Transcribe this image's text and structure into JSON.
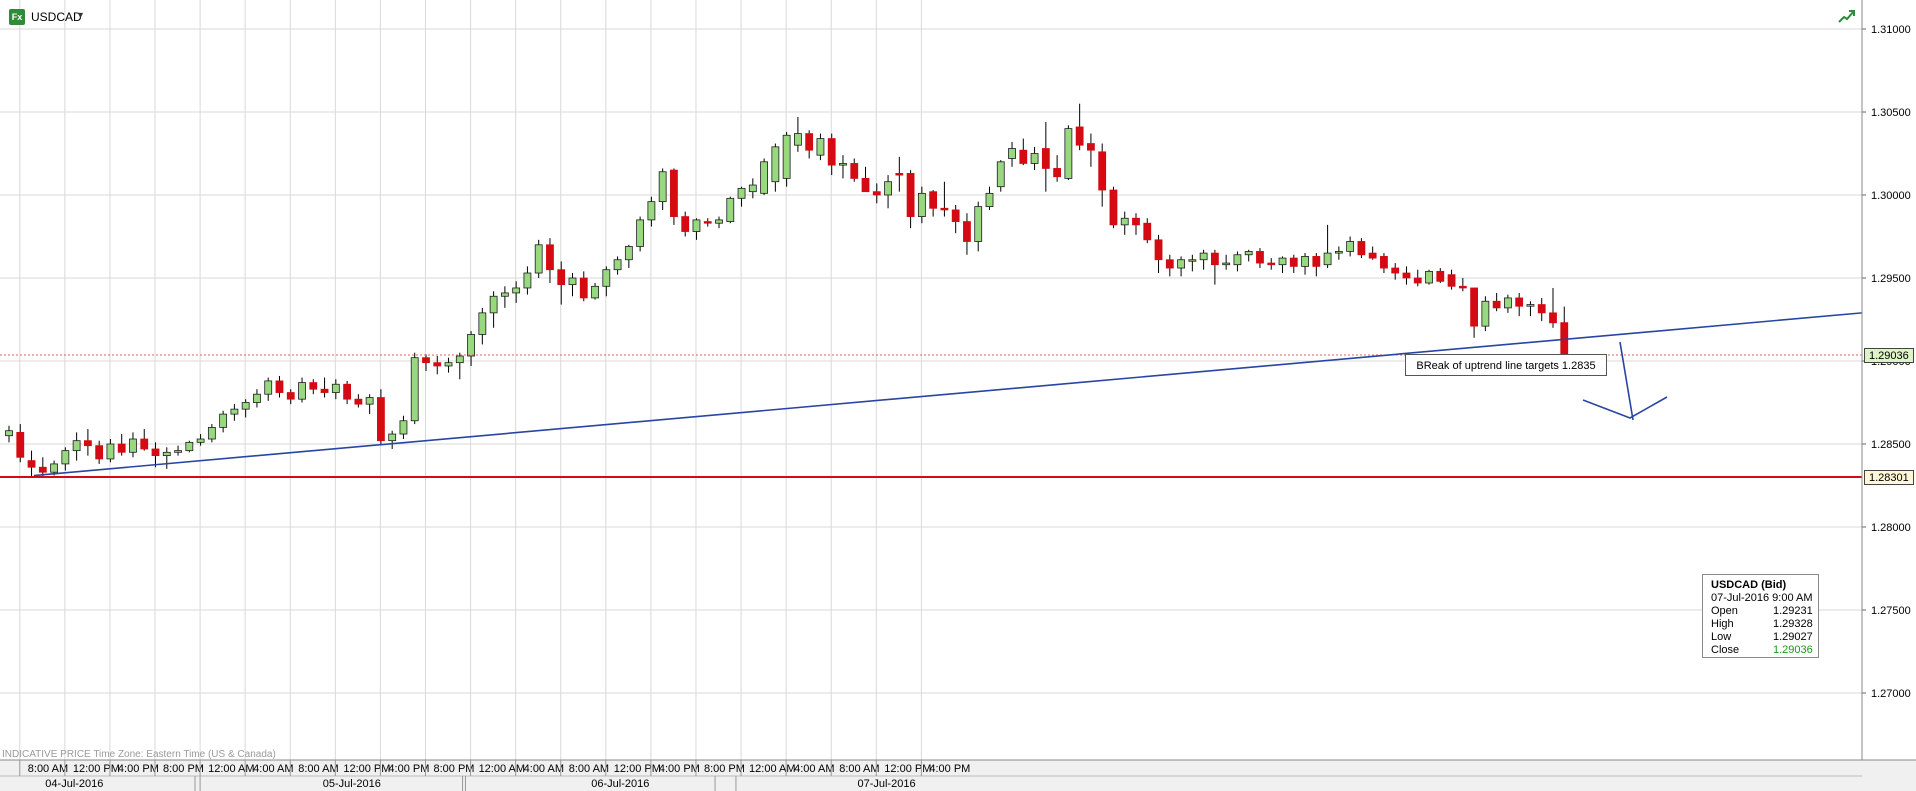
{
  "header": {
    "badge": "Fx",
    "symbol": "USDCAD",
    "caret": "▼",
    "trend_icon": "trend-up-icon"
  },
  "footer_note": "INDICATIVE PRICE   Time Zone: Eastern Time (US & Canada)",
  "annotation": "BReak of uptrend line targets 1.2835",
  "price_tags": {
    "last": "1.29036",
    "line": "1.28301"
  },
  "colors": {
    "up": "#98d980",
    "down": "#d40b12",
    "trendline": "#2945a3",
    "support": "#d40b12",
    "grid": "#d9d9d9"
  },
  "ohlc": {
    "title": "USDCAD (Bid)",
    "datetime": "07-Jul-2016 9:00 AM",
    "rows": [
      {
        "label": "Open",
        "value": "1.29231"
      },
      {
        "label": "High",
        "value": "1.29328"
      },
      {
        "label": "Low",
        "value": "1.29027"
      },
      {
        "label": "Close",
        "value": "1.29036"
      }
    ]
  },
  "chart_data": {
    "type": "candlestick",
    "interval_hours": 1,
    "y_ticks": [
      "1.31000",
      "1.30500",
      "1.30000",
      "1.29500",
      "1.29000",
      "1.28500",
      "1.28000",
      "1.27500",
      "1.27000"
    ],
    "y_range": [
      1.2655,
      1.3115
    ],
    "x_time_labels": [
      "8:00 AM",
      "12:00 PM",
      "4:00 PM",
      "8:00 PM",
      "12:00 AM",
      "4:00 AM",
      "8:00 AM",
      "12:00 PM",
      "4:00 PM",
      "8:00 PM",
      "12:00 AM",
      "4:00 AM",
      "8:00 AM",
      "12:00 PM",
      "4:00 PM",
      "8:00 PM",
      "12:00 AM",
      "4:00 AM",
      "8:00 AM",
      "12:00 PM",
      "4:00 PM"
    ],
    "x_date_labels": [
      "04-Jul-2016",
      "05-Jul-2016",
      "06-Jul-2016",
      "07-Jul-2016"
    ],
    "support_level": 1.28301,
    "last_price": 1.29036,
    "uptrend_line": {
      "start": {
        "x": "04-Jul-2016 7:00 AM",
        "y": 1.2831
      },
      "end": {
        "x": "07-Jul-2016 4:00 PM",
        "y": 1.2929
      }
    },
    "candles": [
      {
        "o": 1.2855,
        "h": 1.2861,
        "l": 1.2851,
        "c": 1.2858
      },
      {
        "o": 1.2857,
        "h": 1.2862,
        "l": 1.2839,
        "c": 1.2842
      },
      {
        "o": 1.284,
        "h": 1.2846,
        "l": 1.283,
        "c": 1.2836
      },
      {
        "o": 1.2836,
        "h": 1.2842,
        "l": 1.283,
        "c": 1.2833
      },
      {
        "o": 1.2833,
        "h": 1.284,
        "l": 1.2831,
        "c": 1.2838
      },
      {
        "o": 1.2838,
        "h": 1.2848,
        "l": 1.2834,
        "c": 1.2846
      },
      {
        "o": 1.2846,
        "h": 1.2857,
        "l": 1.284,
        "c": 1.2852
      },
      {
        "o": 1.2852,
        "h": 1.2859,
        "l": 1.2843,
        "c": 1.2849
      },
      {
        "o": 1.2849,
        "h": 1.2852,
        "l": 1.2838,
        "c": 1.2841
      },
      {
        "o": 1.2841,
        "h": 1.2853,
        "l": 1.2839,
        "c": 1.285
      },
      {
        "o": 1.285,
        "h": 1.2856,
        "l": 1.2843,
        "c": 1.2845
      },
      {
        "o": 1.2845,
        "h": 1.2857,
        "l": 1.2842,
        "c": 1.2853
      },
      {
        "o": 1.2853,
        "h": 1.2859,
        "l": 1.2846,
        "c": 1.2847
      },
      {
        "o": 1.2847,
        "h": 1.2851,
        "l": 1.2836,
        "c": 1.2843
      },
      {
        "o": 1.2843,
        "h": 1.2848,
        "l": 1.2835,
        "c": 1.2845
      },
      {
        "o": 1.2845,
        "h": 1.2849,
        "l": 1.2843,
        "c": 1.2846
      },
      {
        "o": 1.2846,
        "h": 1.2852,
        "l": 1.2845,
        "c": 1.2851
      },
      {
        "o": 1.2851,
        "h": 1.2856,
        "l": 1.2849,
        "c": 1.2853
      },
      {
        "o": 1.2853,
        "h": 1.2862,
        "l": 1.2851,
        "c": 1.286
      },
      {
        "o": 1.286,
        "h": 1.287,
        "l": 1.2857,
        "c": 1.2868
      },
      {
        "o": 1.2868,
        "h": 1.2874,
        "l": 1.2864,
        "c": 1.2871
      },
      {
        "o": 1.2871,
        "h": 1.2877,
        "l": 1.2866,
        "c": 1.2875
      },
      {
        "o": 1.2875,
        "h": 1.2883,
        "l": 1.2872,
        "c": 1.288
      },
      {
        "o": 1.288,
        "h": 1.289,
        "l": 1.2876,
        "c": 1.2888
      },
      {
        "o": 1.2888,
        "h": 1.2891,
        "l": 1.2878,
        "c": 1.2881
      },
      {
        "o": 1.2881,
        "h": 1.2883,
        "l": 1.2874,
        "c": 1.2877
      },
      {
        "o": 1.2877,
        "h": 1.289,
        "l": 1.2875,
        "c": 1.2887
      },
      {
        "o": 1.2887,
        "h": 1.2889,
        "l": 1.288,
        "c": 1.2883
      },
      {
        "o": 1.2883,
        "h": 1.289,
        "l": 1.2878,
        "c": 1.2881
      },
      {
        "o": 1.2881,
        "h": 1.2889,
        "l": 1.2877,
        "c": 1.2886
      },
      {
        "o": 1.2886,
        "h": 1.2888,
        "l": 1.2874,
        "c": 1.2877
      },
      {
        "o": 1.2877,
        "h": 1.288,
        "l": 1.2872,
        "c": 1.2874
      },
      {
        "o": 1.2874,
        "h": 1.288,
        "l": 1.2868,
        "c": 1.2878
      },
      {
        "o": 1.2878,
        "h": 1.2883,
        "l": 1.285,
        "c": 1.2852
      },
      {
        "o": 1.2852,
        "h": 1.2858,
        "l": 1.2847,
        "c": 1.2856
      },
      {
        "o": 1.2856,
        "h": 1.2867,
        "l": 1.2853,
        "c": 1.2864
      },
      {
        "o": 1.2864,
        "h": 1.2905,
        "l": 1.2862,
        "c": 1.2902
      },
      {
        "o": 1.2902,
        "h": 1.2904,
        "l": 1.2894,
        "c": 1.2899
      },
      {
        "o": 1.2899,
        "h": 1.2903,
        "l": 1.2892,
        "c": 1.2897
      },
      {
        "o": 1.2897,
        "h": 1.2902,
        "l": 1.2893,
        "c": 1.2899
      },
      {
        "o": 1.2899,
        "h": 1.2905,
        "l": 1.2889,
        "c": 1.2903
      },
      {
        "o": 1.2903,
        "h": 1.2918,
        "l": 1.2897,
        "c": 1.2916
      },
      {
        "o": 1.2916,
        "h": 1.2932,
        "l": 1.291,
        "c": 1.2929
      },
      {
        "o": 1.2929,
        "h": 1.2942,
        "l": 1.292,
        "c": 1.2939
      },
      {
        "o": 1.2939,
        "h": 1.2945,
        "l": 1.2932,
        "c": 1.2941
      },
      {
        "o": 1.2941,
        "h": 1.2948,
        "l": 1.2935,
        "c": 1.2944
      },
      {
        "o": 1.2944,
        "h": 1.2957,
        "l": 1.294,
        "c": 1.2953
      },
      {
        "o": 1.2953,
        "h": 1.2973,
        "l": 1.295,
        "c": 1.297
      },
      {
        "o": 1.297,
        "h": 1.2974,
        "l": 1.2947,
        "c": 1.2955
      },
      {
        "o": 1.2955,
        "h": 1.296,
        "l": 1.2934,
        "c": 1.2946
      },
      {
        "o": 1.2946,
        "h": 1.2953,
        "l": 1.2939,
        "c": 1.295
      },
      {
        "o": 1.295,
        "h": 1.2954,
        "l": 1.2936,
        "c": 1.2938
      },
      {
        "o": 1.2938,
        "h": 1.2947,
        "l": 1.2937,
        "c": 1.2945
      },
      {
        "o": 1.2945,
        "h": 1.2957,
        "l": 1.2939,
        "c": 1.2955
      },
      {
        "o": 1.2955,
        "h": 1.2963,
        "l": 1.2952,
        "c": 1.2961
      },
      {
        "o": 1.2961,
        "h": 1.297,
        "l": 1.2956,
        "c": 1.2969
      },
      {
        "o": 1.2969,
        "h": 1.2987,
        "l": 1.2966,
        "c": 1.2985
      },
      {
        "o": 1.2985,
        "h": 1.2999,
        "l": 1.2981,
        "c": 1.2996
      },
      {
        "o": 1.2996,
        "h": 1.3016,
        "l": 1.2991,
        "c": 1.3014
      },
      {
        "o": 1.3015,
        "h": 1.3016,
        "l": 1.2982,
        "c": 1.2987
      },
      {
        "o": 1.2987,
        "h": 1.299,
        "l": 1.2975,
        "c": 1.2978
      },
      {
        "o": 1.2978,
        "h": 1.2986,
        "l": 1.2973,
        "c": 1.2985
      },
      {
        "o": 1.2984,
        "h": 1.2986,
        "l": 1.2981,
        "c": 1.2983
      },
      {
        "o": 1.2983,
        "h": 1.2987,
        "l": 1.298,
        "c": 1.2985
      },
      {
        "o": 1.2984,
        "h": 1.2999,
        "l": 1.2983,
        "c": 1.2998
      },
      {
        "o": 1.2998,
        "h": 1.3005,
        "l": 1.2993,
        "c": 1.3004
      },
      {
        "o": 1.3002,
        "h": 1.301,
        "l": 1.2998,
        "c": 1.3006
      },
      {
        "o": 1.3001,
        "h": 1.3022,
        "l": 1.3,
        "c": 1.302
      },
      {
        "o": 1.3008,
        "h": 1.3031,
        "l": 1.3002,
        "c": 1.3029
      },
      {
        "o": 1.301,
        "h": 1.3038,
        "l": 1.3005,
        "c": 1.3036
      },
      {
        "o": 1.303,
        "h": 1.3047,
        "l": 1.3026,
        "c": 1.3037
      },
      {
        "o": 1.3037,
        "h": 1.3039,
        "l": 1.3022,
        "c": 1.3027
      },
      {
        "o": 1.3024,
        "h": 1.3037,
        "l": 1.3021,
        "c": 1.3034
      },
      {
        "o": 1.3034,
        "h": 1.3037,
        "l": 1.3012,
        "c": 1.3018
      },
      {
        "o": 1.3018,
        "h": 1.3024,
        "l": 1.301,
        "c": 1.3019
      },
      {
        "o": 1.3019,
        "h": 1.3022,
        "l": 1.3008,
        "c": 1.301
      },
      {
        "o": 1.301,
        "h": 1.3017,
        "l": 1.3003,
        "c": 1.3002
      },
      {
        "o": 1.3002,
        "h": 1.3007,
        "l": 1.2995,
        "c": 1.3
      },
      {
        "o": 1.3,
        "h": 1.3012,
        "l": 1.2992,
        "c": 1.3008
      },
      {
        "o": 1.3013,
        "h": 1.3023,
        "l": 1.3002,
        "c": 1.3012
      },
      {
        "o": 1.3013,
        "h": 1.3015,
        "l": 1.298,
        "c": 1.2987
      },
      {
        "o": 1.2987,
        "h": 1.3005,
        "l": 1.2983,
        "c": 1.3001
      },
      {
        "o": 1.3002,
        "h": 1.3003,
        "l": 1.2987,
        "c": 1.2992
      },
      {
        "o": 1.2992,
        "h": 1.3008,
        "l": 1.2987,
        "c": 1.2991
      },
      {
        "o": 1.2991,
        "h": 1.2994,
        "l": 1.2977,
        "c": 1.2984
      },
      {
        "o": 1.2984,
        "h": 1.2989,
        "l": 1.2964,
        "c": 1.2972
      },
      {
        "o": 1.2972,
        "h": 1.2996,
        "l": 1.2966,
        "c": 1.2993
      },
      {
        "o": 1.2993,
        "h": 1.3005,
        "l": 1.2991,
        "c": 1.3001
      },
      {
        "o": 1.3005,
        "h": 1.3021,
        "l": 1.3002,
        "c": 1.302
      },
      {
        "o": 1.3022,
        "h": 1.3032,
        "l": 1.3017,
        "c": 1.3028
      },
      {
        "o": 1.3027,
        "h": 1.3034,
        "l": 1.3018,
        "c": 1.3019
      },
      {
        "o": 1.3019,
        "h": 1.3029,
        "l": 1.3015,
        "c": 1.3025
      },
      {
        "o": 1.3028,
        "h": 1.3044,
        "l": 1.3002,
        "c": 1.3016
      },
      {
        "o": 1.3016,
        "h": 1.3024,
        "l": 1.3008,
        "c": 1.3011
      },
      {
        "o": 1.301,
        "h": 1.3042,
        "l": 1.3009,
        "c": 1.304
      },
      {
        "o": 1.3041,
        "h": 1.3055,
        "l": 1.3027,
        "c": 1.303
      },
      {
        "o": 1.3031,
        "h": 1.3037,
        "l": 1.3017,
        "c": 1.3027
      },
      {
        "o": 1.3026,
        "h": 1.3031,
        "l": 1.2993,
        "c": 1.3003
      },
      {
        "o": 1.3003,
        "h": 1.3005,
        "l": 1.298,
        "c": 1.2982
      },
      {
        "o": 1.2982,
        "h": 1.299,
        "l": 1.2976,
        "c": 1.2986
      },
      {
        "o": 1.2986,
        "h": 1.2989,
        "l": 1.2976,
        "c": 1.2982
      },
      {
        "o": 1.2983,
        "h": 1.2986,
        "l": 1.2971,
        "c": 1.2973
      },
      {
        "o": 1.2973,
        "h": 1.2976,
        "l": 1.2953,
        "c": 1.2961
      },
      {
        "o": 1.2961,
        "h": 1.2964,
        "l": 1.2951,
        "c": 1.2956
      },
      {
        "o": 1.2956,
        "h": 1.2963,
        "l": 1.2951,
        "c": 1.2961
      },
      {
        "o": 1.2961,
        "h": 1.2964,
        "l": 1.2954,
        "c": 1.2961
      },
      {
        "o": 1.2961,
        "h": 1.2967,
        "l": 1.2955,
        "c": 1.2965
      },
      {
        "o": 1.2965,
        "h": 1.2967,
        "l": 1.2946,
        "c": 1.2958
      },
      {
        "o": 1.2958,
        "h": 1.2964,
        "l": 1.2955,
        "c": 1.2959
      },
      {
        "o": 1.2958,
        "h": 1.2966,
        "l": 1.2954,
        "c": 1.2964
      },
      {
        "o": 1.2964,
        "h": 1.2967,
        "l": 1.296,
        "c": 1.2966
      },
      {
        "o": 1.2966,
        "h": 1.2968,
        "l": 1.2956,
        "c": 1.2959
      },
      {
        "o": 1.2959,
        "h": 1.2962,
        "l": 1.2955,
        "c": 1.2958
      },
      {
        "o": 1.2958,
        "h": 1.2963,
        "l": 1.2953,
        "c": 1.2962
      },
      {
        "o": 1.2962,
        "h": 1.2964,
        "l": 1.2953,
        "c": 1.2957
      },
      {
        "o": 1.2957,
        "h": 1.2965,
        "l": 1.2952,
        "c": 1.2963
      },
      {
        "o": 1.2963,
        "h": 1.2965,
        "l": 1.2951,
        "c": 1.2957
      },
      {
        "o": 1.2958,
        "h": 1.2982,
        "l": 1.2956,
        "c": 1.2965
      },
      {
        "o": 1.2965,
        "h": 1.2969,
        "l": 1.2961,
        "c": 1.2966
      },
      {
        "o": 1.2966,
        "h": 1.2975,
        "l": 1.2963,
        "c": 1.2972
      },
      {
        "o": 1.2972,
        "h": 1.2974,
        "l": 1.2962,
        "c": 1.2964
      },
      {
        "o": 1.2965,
        "h": 1.2969,
        "l": 1.2961,
        "c": 1.2962
      },
      {
        "o": 1.2963,
        "h": 1.2965,
        "l": 1.2953,
        "c": 1.2956
      },
      {
        "o": 1.2956,
        "h": 1.2959,
        "l": 1.2949,
        "c": 1.2953
      },
      {
        "o": 1.2953,
        "h": 1.2957,
        "l": 1.2946,
        "c": 1.295
      },
      {
        "o": 1.295,
        "h": 1.2955,
        "l": 1.2945,
        "c": 1.2947
      },
      {
        "o": 1.2947,
        "h": 1.2955,
        "l": 1.2946,
        "c": 1.2954
      },
      {
        "o": 1.2954,
        "h": 1.2956,
        "l": 1.2947,
        "c": 1.2948
      },
      {
        "o": 1.2952,
        "h": 1.2955,
        "l": 1.2943,
        "c": 1.2945
      },
      {
        "o": 1.2945,
        "h": 1.295,
        "l": 1.2942,
        "c": 1.2944
      },
      {
        "o": 1.2944,
        "h": 1.2944,
        "l": 1.2914,
        "c": 1.2921
      },
      {
        "o": 1.2921,
        "h": 1.2939,
        "l": 1.2918,
        "c": 1.2936
      },
      {
        "o": 1.2936,
        "h": 1.2941,
        "l": 1.293,
        "c": 1.2932
      },
      {
        "o": 1.2932,
        "h": 1.294,
        "l": 1.2929,
        "c": 1.2938
      },
      {
        "o": 1.2938,
        "h": 1.2941,
        "l": 1.2927,
        "c": 1.2933
      },
      {
        "o": 1.2933,
        "h": 1.2936,
        "l": 1.2927,
        "c": 1.2934
      },
      {
        "o": 1.2934,
        "h": 1.2938,
        "l": 1.2924,
        "c": 1.2929
      },
      {
        "o": 1.2929,
        "h": 1.2944,
        "l": 1.292,
        "c": 1.2923
      },
      {
        "o": 1.29231,
        "h": 1.29328,
        "l": 1.29027,
        "c": 1.29036
      }
    ]
  }
}
